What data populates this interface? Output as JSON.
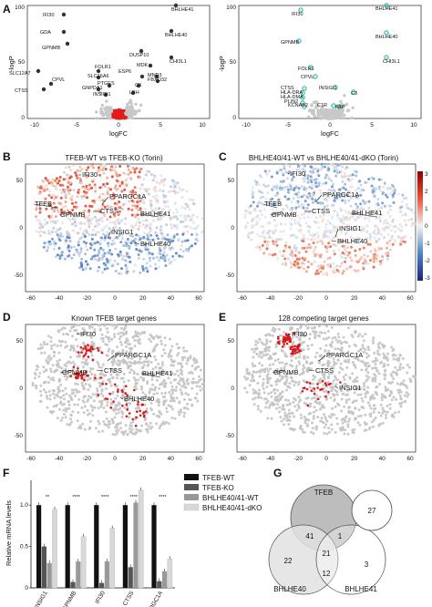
{
  "panel_letters": {
    "A": "A",
    "B": "B",
    "C": "C",
    "D": "D",
    "E": "E",
    "F": "F",
    "G": "G"
  },
  "volcano": {
    "xlabel": "logFC",
    "ylabel": "-logP",
    "x_ticks": [
      "-10",
      "-5",
      "0",
      "5",
      "10"
    ],
    "y_ticks": [
      "0",
      "50",
      "100"
    ],
    "left_labels": [
      "IFI30",
      "GDA",
      "GPNMB",
      "SLC12A7",
      "CPVL",
      "CTSS",
      "FOLR1",
      "SLC16A6",
      "GNPDA1",
      "INSIGI1",
      "PTGES",
      "ESP6",
      "C3",
      "DUSP10",
      "MDK",
      "MND3",
      "FBXO32",
      "LBH",
      "BHLHE41",
      "BHLHE40",
      "CHI3L1"
    ],
    "right_labels": [
      "IFI30",
      "GPNMB",
      "FOLR1",
      "CPVL",
      "CTSS",
      "HLA-DRA",
      "HLA-DMA",
      "PLIN2",
      "INSIGI1",
      "KCNAB2",
      "C1R",
      "FAP",
      "C3",
      "BHLHE41",
      "BHLHE40",
      "CHI3L1"
    ]
  },
  "tsne": {
    "x_ticks": [
      "-60",
      "-40",
      "-20",
      "0",
      "20",
      "40",
      "60"
    ],
    "y_ticks": [
      "-50",
      "0",
      "50"
    ],
    "titles": {
      "B": "TFEB-WT vs TFEB-KO (Torin)",
      "C": "BHLHE40/41-WT vs BHLHE40/41-dKO (Torin)",
      "D": "Known TFEB target genes",
      "E": "128 competing target genes"
    },
    "genes_BC": [
      "IFI30",
      "PPARGC1A",
      "TFEB",
      "CTSS",
      "GPNMB",
      "BHLHE41",
      "INSIG1",
      "BHLHE40"
    ],
    "genes_D": [
      "IFI30",
      "PPARGC1A",
      "CTSS",
      "GPNMB",
      "BHLHE41",
      "BHLHE40"
    ],
    "genes_E": [
      "IFI30",
      "PPARGC1A",
      "CTSS",
      "GPNMB",
      "INSIG1"
    ],
    "colorbar_ticks": [
      "3",
      "2",
      "1",
      "0",
      "-1",
      "-2",
      "-3"
    ]
  },
  "chart_data": {
    "type": "bar",
    "ylabel": "Relative mRNA levels",
    "ylim": [
      0,
      1.3
    ],
    "y_ticks": [
      "0",
      "0.5",
      "1.0"
    ],
    "categories": [
      "INSIG1",
      "GPNMB",
      "IFI30",
      "CTSS",
      "PPARGC1A"
    ],
    "series": [
      {
        "name": "TFEB-WT",
        "color": "#111111",
        "values": [
          1.0,
          1.0,
          1.0,
          1.0,
          1.0
        ]
      },
      {
        "name": "TFEB-KO",
        "color": "#555555",
        "values": [
          0.5,
          0.07,
          0.06,
          0.25,
          0.08
        ]
      },
      {
        "name": "BHLHE40/41-WT",
        "color": "#999999",
        "values": [
          0.3,
          0.32,
          0.32,
          1.03,
          0.2
        ]
      },
      {
        "name": "BHLHE40/41-dKO",
        "color": "#d8d8d8",
        "values": [
          0.95,
          0.62,
          0.72,
          1.18,
          0.35
        ]
      }
    ],
    "stars": [
      "**",
      "****",
      "****",
      "****",
      "****"
    ]
  },
  "venn": {
    "sets": [
      "TFEB",
      "BHLHE40",
      "BHLHE41"
    ],
    "counts": {
      "tfeb_only": "",
      "tfeb_b40": "41",
      "tfeb_b41": "1",
      "b40_only": "22",
      "b40_b41": "12",
      "all": "21",
      "b41_only": "3",
      "extra": "27"
    }
  }
}
